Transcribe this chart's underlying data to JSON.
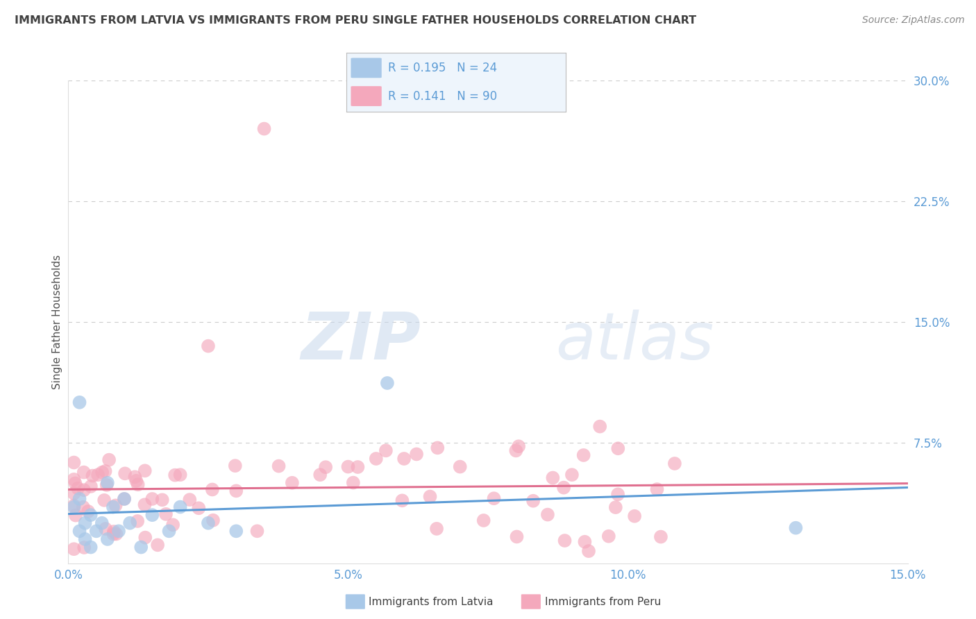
{
  "title": "IMMIGRANTS FROM LATVIA VS IMMIGRANTS FROM PERU SINGLE FATHER HOUSEHOLDS CORRELATION CHART",
  "source": "Source: ZipAtlas.com",
  "ylabel": "Single Father Households",
  "xlim": [
    0,
    0.15
  ],
  "ylim": [
    0,
    0.3
  ],
  "xticks": [
    0.0,
    0.05,
    0.1,
    0.15
  ],
  "xticklabels": [
    "0.0%",
    "5.0%",
    "10.0%",
    "15.0%"
  ],
  "ytick_vals": [
    0.075,
    0.15,
    0.225,
    0.3
  ],
  "yticklabels": [
    "7.5%",
    "15.0%",
    "22.5%",
    "30.0%"
  ],
  "latvia_R": 0.195,
  "latvia_N": 24,
  "peru_R": 0.141,
  "peru_N": 90,
  "latvia_color": "#A8C8E8",
  "peru_color": "#F4A8BC",
  "latvia_line_color": "#5B9BD5",
  "peru_line_color": "#E07090",
  "watermark_zip": "ZIP",
  "watermark_atlas": "atlas",
  "background_color": "#FFFFFF",
  "grid_color": "#CCCCCC",
  "legend_box_color": "#EEF5FC",
  "title_color": "#404040",
  "tick_label_color": "#5B9BD5"
}
